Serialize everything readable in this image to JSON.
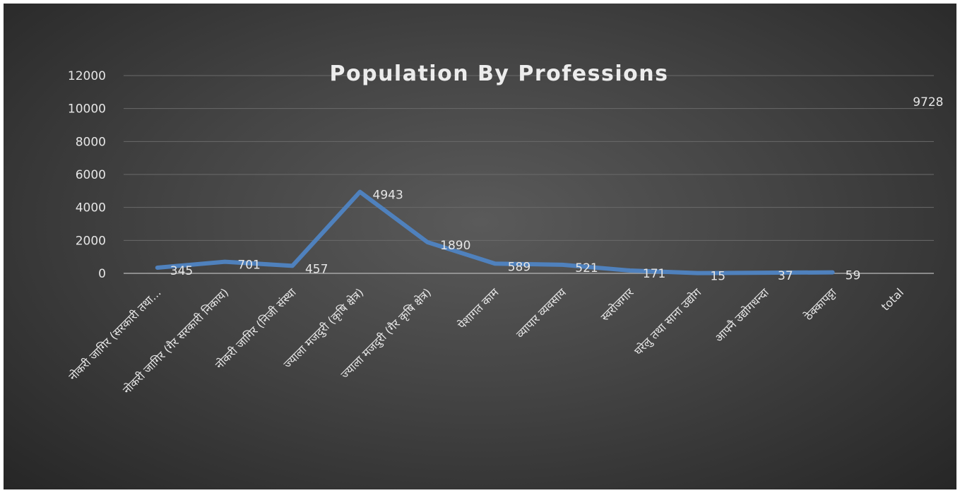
{
  "chart_data": {
    "type": "line",
    "title": "Population By Professions",
    "xlabel": "",
    "ylabel": "",
    "ylim": [
      0,
      12000
    ],
    "yticks": [
      0,
      2000,
      4000,
      6000,
      8000,
      10000,
      12000
    ],
    "categories": [
      "नोकरी जागिर (सरकारी तथा...",
      "नोकरी जागिर (गैर सरकारी निकाय)",
      "नोकरी जागिर (निजी संस्था",
      "ज्याला मजदुरी (कृषि क्षेत्र)",
      "ज्याला मजदुरी (गैर कृषि क्षेत्र)",
      "पेशागत काम",
      "व्यापार व्यवसाय",
      "स्वरोजगार",
      "घरेलु तथा साना उद्योग",
      "आफ्नै उद्योगधन्दा",
      "ठेक्कापट्टा",
      "total"
    ],
    "series": [
      {
        "values": [
          345,
          701,
          457,
          4943,
          1890,
          589,
          521,
          171,
          15,
          37,
          59,
          9728
        ],
        "color": "#4f81bd"
      }
    ],
    "grid": true,
    "legend": "none"
  }
}
